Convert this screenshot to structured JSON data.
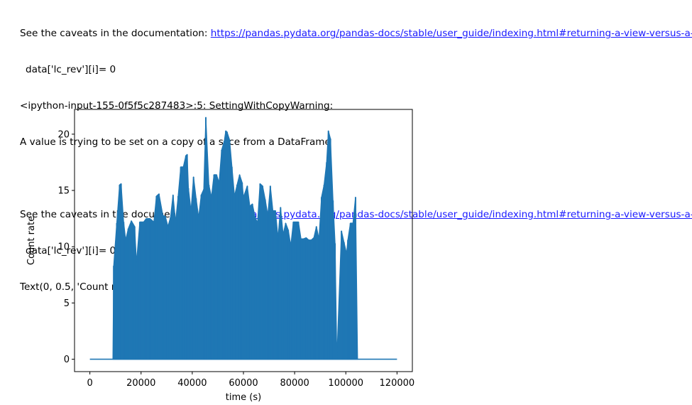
{
  "output": {
    "block1": {
      "caveat_prefix": "See the caveats in the documentation: ",
      "link": "https://pandas.pydata.org/pandas-docs/stable/user_guide/indexing.html#returning-a-view-versus-a-copy",
      "code_line": "data['lc_rev'][i]= 0"
    },
    "warning": {
      "location": "<ipython-input-155-0f5f5c287483>:5: SettingWithCopyWarning:",
      "message": "A value is trying to be set on a copy of a slice from a DataFrame"
    },
    "block2": {
      "caveat_prefix": "See the caveats in the documentation: ",
      "link": "https://pandas.pydata.org/pandas-docs/stable/user_guide/indexing.html#returning-a-view-versus-a-copy",
      "code_line": "data['lc_rev'][i]= 0"
    },
    "result_repr": "Text(0, 0.5, 'Count rate')"
  },
  "colors": {
    "line": "#1f77b4",
    "link": "#1a1aff",
    "axes": "#000000"
  },
  "chart_data": {
    "type": "line",
    "xlabel": "time (s)",
    "ylabel": "Count rate",
    "xlim": [
      -6000,
      126000
    ],
    "ylim": [
      -1.1,
      22.2
    ],
    "xticks": [
      0,
      20000,
      40000,
      60000,
      80000,
      100000,
      120000
    ],
    "xtick_labels": [
      "0",
      "20000",
      "40000",
      "60000",
      "80000",
      "100000",
      "120000"
    ],
    "yticks": [
      0,
      5,
      10,
      15,
      20
    ],
    "ytick_labels": [
      "0",
      "5",
      "10",
      "15",
      "20"
    ],
    "grid": false,
    "series": [
      {
        "x": [
          0,
          9000,
          9300,
          10500,
          11600,
          12200,
          13200,
          14000,
          15000,
          16200,
          17500,
          18200,
          19500,
          21000,
          22000,
          23500,
          25000,
          26000,
          27000,
          28500,
          29500,
          30500,
          31500,
          32500,
          33500,
          34500,
          35500,
          36500,
          37500,
          38000,
          38500,
          39500,
          40500,
          41500,
          42500,
          43500,
          44500,
          45300,
          46500,
          47500,
          48500,
          49500,
          50500,
          51500,
          52500,
          53100,
          53600,
          54600,
          55500,
          56500,
          57500,
          58500,
          59500,
          60000,
          61500,
          62500,
          63500,
          64500,
          65500,
          66500,
          67500,
          68500,
          69500,
          70500,
          71500,
          72500,
          73500,
          74500,
          75500,
          76500,
          77500,
          78500,
          79500,
          80500,
          81500,
          82500,
          83500,
          84500,
          85500,
          86500,
          87500,
          88500,
          89500,
          90500,
          91500,
          92500,
          93200,
          94000,
          95000,
          95800,
          96500,
          98300,
          99300,
          100300,
          100800,
          101800,
          102800,
          103800,
          104600,
          105000,
          120000
        ],
        "y": [
          0,
          0,
          8.3,
          12.1,
          15.5,
          15.6,
          12.2,
          10.6,
          11.6,
          12.3,
          11.8,
          8.6,
          12.2,
          12.2,
          12.5,
          12.5,
          12.2,
          14.5,
          14.7,
          12.8,
          12.7,
          11.8,
          12.6,
          14.6,
          12.2,
          14.5,
          17.1,
          17.1,
          18.1,
          18.2,
          15.2,
          13.2,
          16.2,
          14.3,
          12.6,
          14.6,
          15.1,
          21.5,
          15.5,
          14.4,
          16.4,
          16.4,
          15.7,
          18.6,
          19.4,
          20.3,
          20.2,
          19.5,
          17.1,
          14.5,
          15.5,
          16.4,
          15.7,
          14.4,
          15.4,
          13.6,
          13.8,
          12.7,
          12.1,
          15.6,
          15.4,
          14.2,
          12.8,
          15.4,
          13.2,
          13.2,
          10.8,
          13.5,
          11.1,
          12.1,
          11.5,
          10.1,
          12.2,
          12.2,
          12.2,
          10.7,
          10.7,
          10.8,
          10.6,
          10.6,
          10.8,
          11.8,
          10.7,
          14.4,
          15.5,
          17.5,
          20.3,
          19.6,
          14.1,
          10.3,
          0,
          11.4,
          10.4,
          9.4,
          10.6,
          12.1,
          12.1,
          14.4,
          0,
          0,
          0
        ]
      }
    ]
  }
}
